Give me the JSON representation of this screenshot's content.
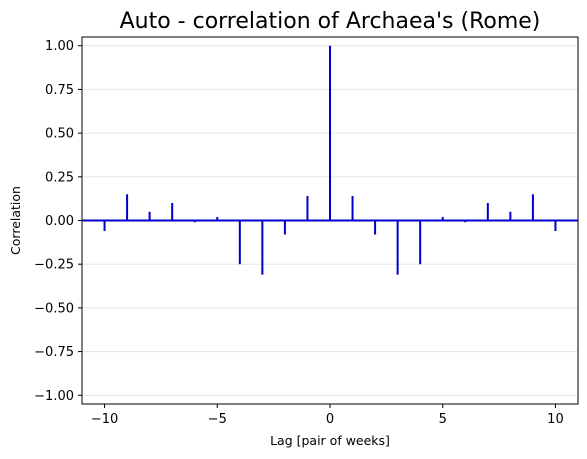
{
  "chart_data": {
    "type": "bar",
    "title": "Auto - correlation of Archaea's (Rome)",
    "xlabel": "Lag [pair of weeks]",
    "ylabel": "Correlation",
    "xlim": [
      -11,
      11
    ],
    "ylim": [
      -1.05,
      1.05
    ],
    "x_ticks": [
      -10,
      -5,
      0,
      5,
      10
    ],
    "x_tick_labels": [
      "−10",
      "−5",
      "0",
      "5",
      "10"
    ],
    "y_ticks": [
      -1.0,
      -0.75,
      -0.5,
      -0.25,
      0.0,
      0.25,
      0.5,
      0.75,
      1.0
    ],
    "y_tick_labels": [
      "−1.00",
      "−0.75",
      "−0.50",
      "−0.25",
      "0.00",
      "0.25",
      "0.50",
      "0.75",
      "1.00"
    ],
    "grid": "horizontal",
    "baseline": 0,
    "color": "#0000cc",
    "series": [
      {
        "lags": [
          -10,
          -9,
          -8,
          -7,
          -6,
          -5,
          -4,
          -3,
          -2,
          -1,
          0,
          1,
          2,
          3,
          4,
          5,
          6,
          7,
          8,
          9,
          10
        ],
        "values": [
          -0.06,
          0.15,
          0.05,
          0.1,
          -0.01,
          0.02,
          -0.25,
          -0.31,
          -0.08,
          0.14,
          1.0,
          0.14,
          -0.08,
          -0.31,
          -0.25,
          0.02,
          -0.01,
          0.1,
          0.05,
          0.15,
          -0.06
        ]
      }
    ]
  }
}
